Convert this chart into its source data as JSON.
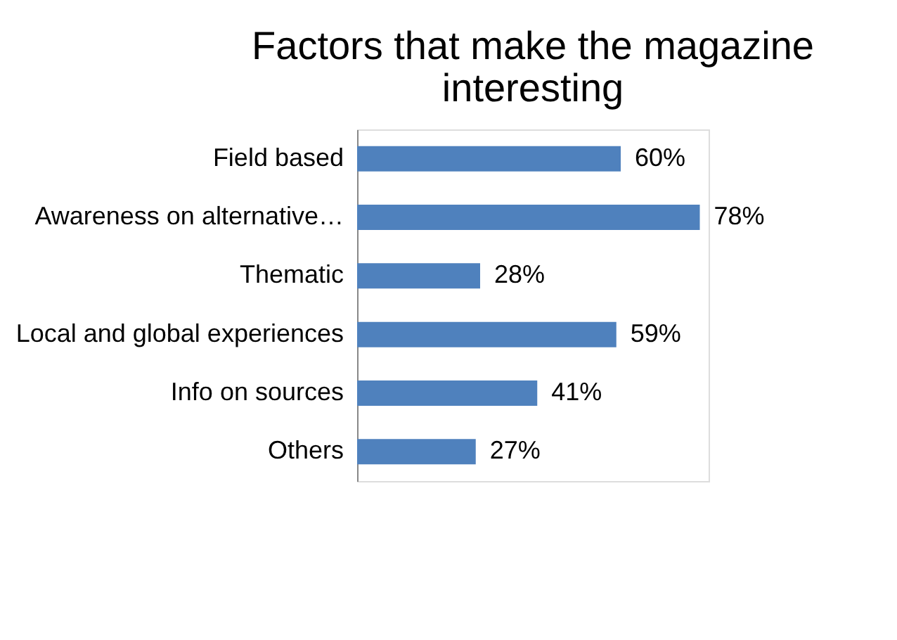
{
  "chart_data": {
    "type": "bar",
    "orientation": "horizontal",
    "title": "Factors that make the magazine interesting",
    "categories": [
      "Field based",
      "Awareness on alternative…",
      "Thematic",
      "Local and global experiences",
      "Info on sources",
      "Others"
    ],
    "values": [
      60,
      78,
      28,
      59,
      41,
      27
    ],
    "value_labels": [
      "60%",
      "78%",
      "28%",
      "59%",
      "41%",
      "27%"
    ],
    "color": "#4f81bd"
  }
}
